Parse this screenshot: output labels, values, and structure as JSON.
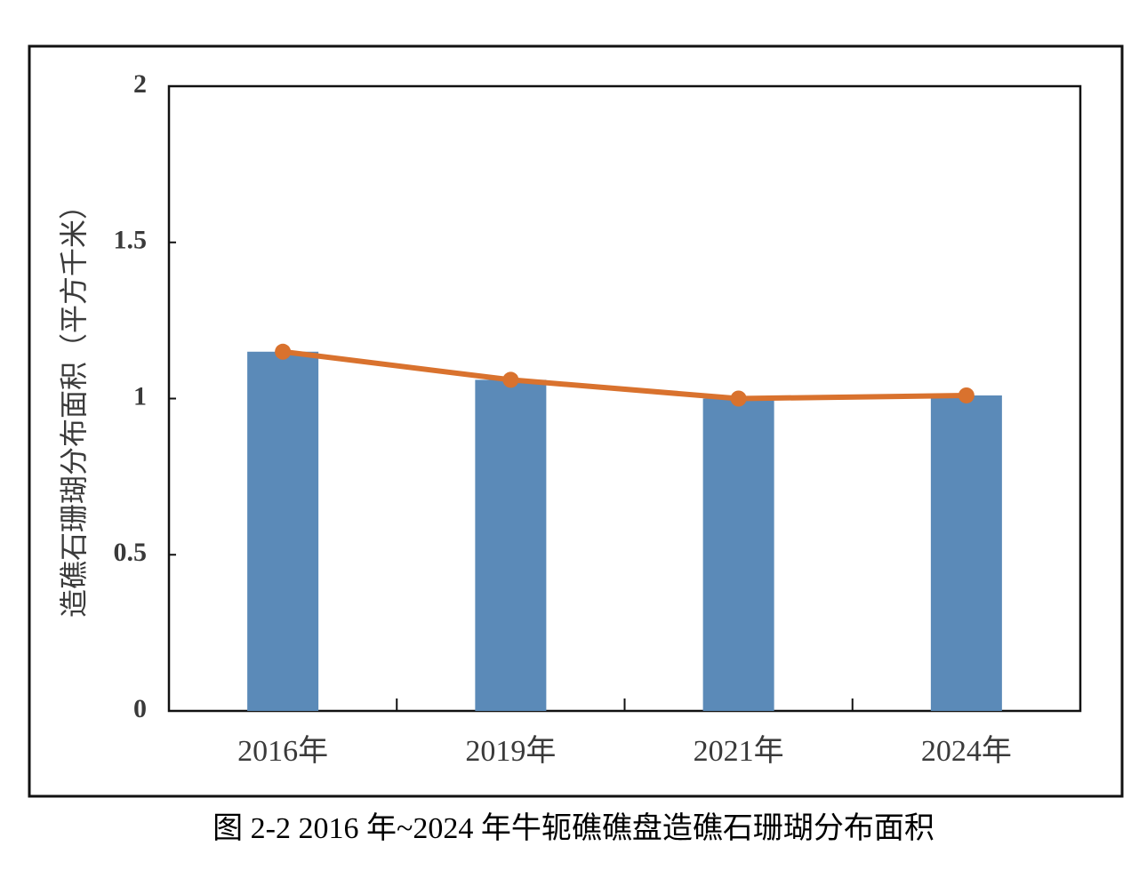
{
  "chart_data": {
    "type": "bar",
    "ylabel": "造礁石珊瑚分布面积（平方千米）",
    "caption": "图 2-2 2016 年~2024 年牛轭礁礁盘造礁石珊瑚分布面积",
    "categories": [
      "2016年",
      "2019年",
      "2021年",
      "2024年"
    ],
    "series": [
      {
        "type": "bar",
        "color": "#5b8ab8",
        "values": [
          1.15,
          1.06,
          1.0,
          1.01
        ]
      },
      {
        "type": "line",
        "color": "#d9722e",
        "values": [
          1.15,
          1.06,
          1.0,
          1.01
        ]
      }
    ],
    "ylim": [
      0,
      2
    ],
    "yticks": [
      0,
      0.5,
      1,
      1.5,
      2
    ],
    "grid": false
  }
}
